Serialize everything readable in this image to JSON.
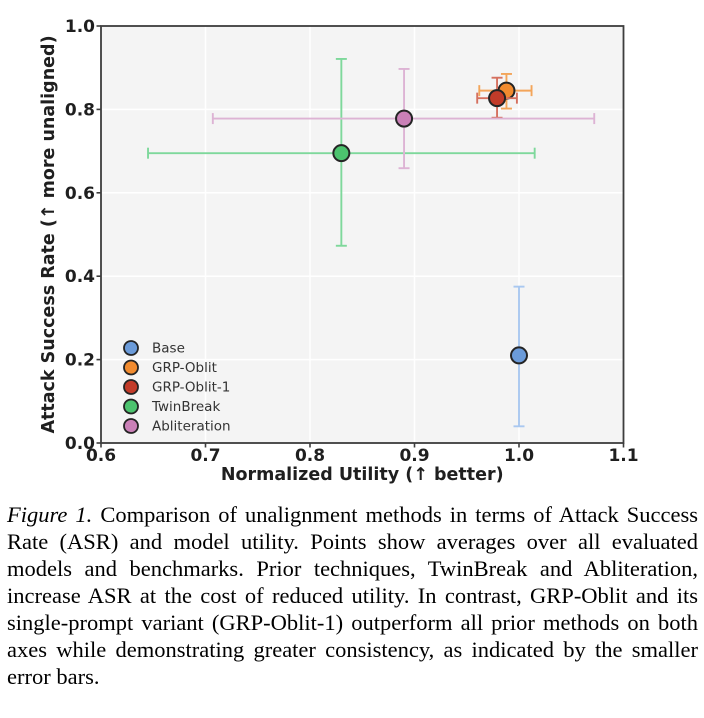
{
  "figure": {
    "caption": {
      "label": "Figure 1.",
      "text": "Comparison of unalignment methods in terms of Attack Success Rate (ASR) and model utility. Points show averages over all evaluated models and benchmarks. Prior techniques, TwinBreak and Abliteration, increase ASR at the cost of reduced utility. In contrast, GRP-Oblit and its single-prompt variant (GRP-Oblit-1) outperform all prior methods on both axes while demonstrating greater consistency, as indicated by the smaller error bars."
    }
  },
  "chart_data": {
    "type": "scatter",
    "title": "",
    "xlabel": "Normalized Utility (↑ better)",
    "ylabel": "Attack Success Rate (↑ more unaligned)",
    "xlim": [
      0.6,
      1.1
    ],
    "ylim": [
      0.0,
      1.0
    ],
    "x_ticks": [
      0.6,
      0.7,
      0.8,
      0.9,
      1.0,
      1.1
    ],
    "y_ticks": [
      0.0,
      0.2,
      0.4,
      0.6,
      0.8,
      1.0
    ],
    "grid": true,
    "legend_position": "lower-left",
    "series": [
      {
        "name": "Base",
        "x": 1.0,
        "y": 0.21,
        "x_err": null,
        "y_err": [
          0.04,
          0.375
        ],
        "color": "#6b9bd9",
        "err_color": "#a9c8f0"
      },
      {
        "name": "GRP-Oblit",
        "x": 0.988,
        "y": 0.845,
        "x_err": [
          0.962,
          1.012
        ],
        "y_err": [
          0.802,
          0.885
        ],
        "color": "#f18b2f",
        "err_color": "#f3a55a"
      },
      {
        "name": "GRP-Oblit-1",
        "x": 0.979,
        "y": 0.827,
        "x_err": [
          0.96,
          0.998
        ],
        "y_err": [
          0.78,
          0.876
        ],
        "color": "#c23b29",
        "err_color": "#d5705f"
      },
      {
        "name": "TwinBreak",
        "x": 0.83,
        "y": 0.695,
        "x_err": [
          0.645,
          1.015
        ],
        "y_err": [
          0.473,
          0.921
        ],
        "color": "#4cc36e",
        "err_color": "#7ed89b"
      },
      {
        "name": "Abliteration",
        "x": 0.89,
        "y": 0.778,
        "x_err": [
          0.707,
          1.072
        ],
        "y_err": [
          0.659,
          0.897
        ],
        "color": "#ca80b7",
        "err_color": "#ddb3d4"
      }
    ],
    "style": {
      "plot_bg": "#f4f4f4",
      "grid_color": "#ffffff",
      "spine_color": "#3d3d3d",
      "tick_color": "#3d3d3d",
      "tick_label_color": "#1f1f1f",
      "axis_label_color": "#1f1f1f",
      "legend_text_color": "#333333",
      "marker_edge_color": "#242424"
    }
  }
}
